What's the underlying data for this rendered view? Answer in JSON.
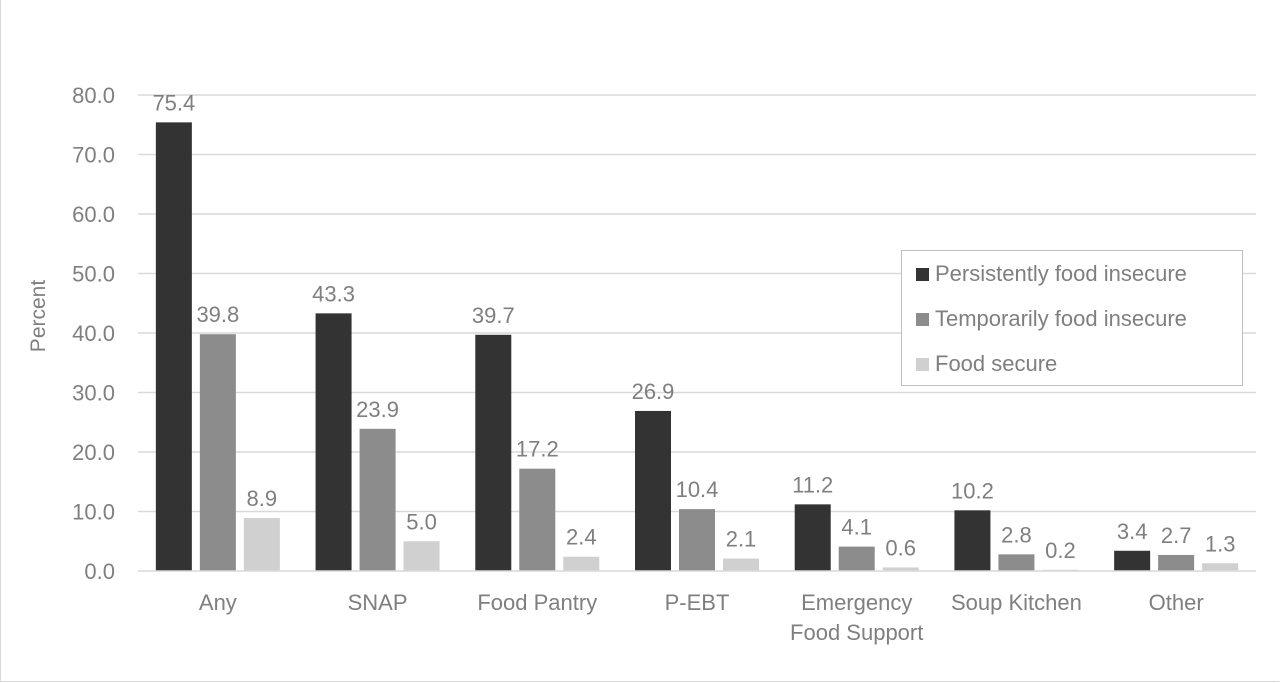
{
  "chart_data": {
    "type": "bar",
    "title": "",
    "xlabel": "",
    "ylabel": "Percent",
    "ylim": [
      0,
      80
    ],
    "yticks": [
      "0.0",
      "10.0",
      "20.0",
      "30.0",
      "40.0",
      "50.0",
      "60.0",
      "70.0",
      "80.0"
    ],
    "grid": true,
    "legend_position": "right",
    "categories": [
      [
        "Any"
      ],
      [
        "SNAP"
      ],
      [
        "Food Pantry"
      ],
      [
        "P-EBT"
      ],
      [
        "Emergency",
        "Food Support"
      ],
      [
        "Soup Kitchen"
      ],
      [
        "Other"
      ]
    ],
    "series": [
      {
        "name": "Persistently food insecure",
        "color": "#333333",
        "values": [
          75.4,
          43.3,
          39.7,
          26.9,
          11.2,
          10.2,
          3.4
        ],
        "labels": [
          "75.4",
          "43.3",
          "39.7",
          "26.9",
          "11.2",
          "10.2",
          "3.4"
        ]
      },
      {
        "name": "Temporarily food insecure",
        "color": "#8c8c8c",
        "values": [
          39.8,
          23.9,
          17.2,
          10.4,
          4.1,
          2.8,
          2.7
        ],
        "labels": [
          "39.8",
          "23.9",
          "17.2",
          "10.4",
          "4.1",
          "2.8",
          "2.7"
        ]
      },
      {
        "name": "Food secure",
        "color": "#d0d0d0",
        "values": [
          8.9,
          5.0,
          2.4,
          2.1,
          0.6,
          0.2,
          1.3
        ],
        "labels": [
          "8.9",
          "5.0",
          "2.4",
          "2.1",
          "0.6",
          "0.2",
          "1.3"
        ]
      }
    ]
  }
}
